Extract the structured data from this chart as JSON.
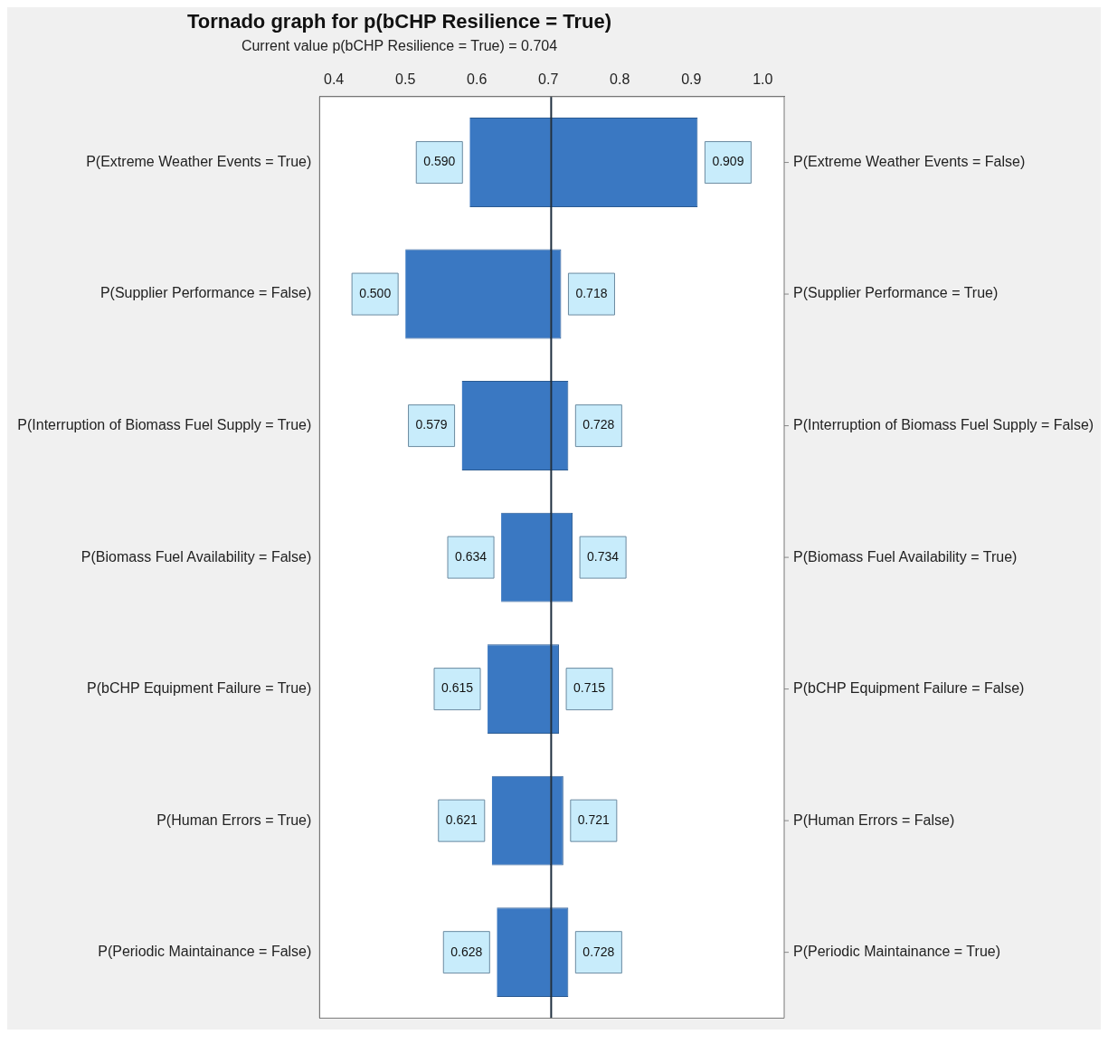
{
  "chart_data": {
    "type": "bar",
    "orientation": "horizontal",
    "title": "Tornado graph for p(bCHP Resilience = True)",
    "subtitle": "Current value p(bCHP Resilience = True) = 0.704",
    "categories": [
      "P(Extreme Weather Events = True)",
      "P(Supplier Performance = False)",
      "P(Interruption of Biomass Fuel Supply = True)",
      "P(Biomass Fuel Availability = False)",
      "P(bCHP Equipment Failure = True)",
      "P(Human Errors = True)",
      "P(Periodic Maintainance = False)"
    ],
    "series": [
      {
        "color": "#3a78c2",
        "base": [
          0.704,
          0.704,
          0.704,
          0.704,
          0.704,
          0.704,
          0.704
        ],
        "values": [
          -0.114,
          -0.204,
          -0.125,
          -0.07,
          -0.089,
          -0.083,
          -0.076
        ],
        "value_labels": [
          "0.590",
          "0.500",
          "0.579",
          "0.634",
          "0.615",
          "0.621",
          "0.628"
        ]
      },
      {
        "color": "#3a78c2",
        "base": [
          0.704,
          0.704,
          0.704,
          0.704,
          0.704,
          0.704,
          0.704
        ],
        "values": [
          0.205,
          0.014,
          0.024,
          0.03,
          0.011,
          0.017,
          0.024
        ],
        "value_labels": [
          "0.909",
          "0.718",
          "0.728",
          "0.734",
          "0.715",
          "0.721",
          "0.728"
        ]
      }
    ],
    "xlim": [
      0.38,
      1.03
    ],
    "xticks": [
      {
        "value": 0.4,
        "label": "0.4"
      },
      {
        "value": 0.5,
        "label": "0.5"
      },
      {
        "value": 0.6,
        "label": "0.6"
      },
      {
        "value": 0.7,
        "label": "0.7"
      },
      {
        "value": 0.8,
        "label": "0.8"
      },
      {
        "value": 0.9,
        "label": "0.9"
      },
      {
        "value": 1.0,
        "label": "1.0"
      }
    ],
    "ref_lines": [
      {
        "axis": "x",
        "value": 0.704,
        "color": "#1f2f3f"
      }
    ],
    "annotations": [
      "P(Extreme Weather Events = False)",
      "P(Supplier Performance = True)",
      "P(Interruption of Biomass Fuel Supply = False)",
      "P(Biomass Fuel Availability = True)",
      "P(bCHP Equipment Failure = False)",
      "P(Human Errors = False)",
      "P(Periodic Maintainance = True)"
    ],
    "grid": false,
    "legend": false
  }
}
